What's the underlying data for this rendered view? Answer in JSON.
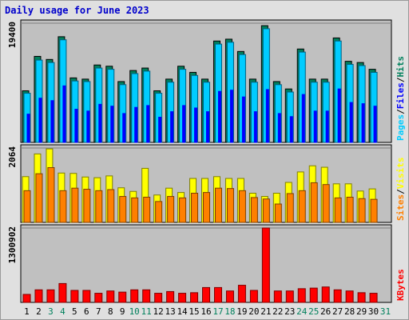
{
  "title": "Daily usage for June 2023",
  "colors": {
    "hits": "#00ccff",
    "hits_dark": "#00805c",
    "files": "#0080ff",
    "files_dark": "#0000ff",
    "pages": "#00ccff",
    "visits": "#ffff00",
    "visits_dark": "#808000",
    "sites": "#ff8000",
    "sites_dark": "#804000",
    "kbytes": "#ff0000",
    "kbytes_dark": "#800000",
    "weekend": "#00805c",
    "weekday": "#000000",
    "plot_bg": "#c0c0c0",
    "grid": "#808080",
    "title": "#0000cc"
  },
  "chart_data": [
    {
      "type": "bar",
      "panel": "hits-files-pages",
      "max_label": "19400",
      "ylim": [
        0,
        19400
      ],
      "legend": [
        "Pages",
        "Files",
        "Hits"
      ],
      "legend_separator": "/",
      "categories": [
        "1",
        "2",
        "3",
        "4",
        "5",
        "6",
        "7",
        "8",
        "9",
        "10",
        "11",
        "12",
        "13",
        "14",
        "15",
        "16",
        "17",
        "18",
        "19",
        "20",
        "21",
        "22",
        "23",
        "24",
        "25",
        "26",
        "27",
        "28",
        "29",
        "30",
        "31"
      ],
      "series": [
        {
          "name": "Hits",
          "values": [
            8400,
            14000,
            13500,
            17200,
            10500,
            10300,
            12600,
            12400,
            9900,
            11700,
            12100,
            8400,
            10300,
            12400,
            11400,
            10300,
            16500,
            16800,
            14800,
            10300,
            19000,
            9900,
            8700,
            15200,
            10300,
            10300,
            17000,
            13200,
            13000,
            11900,
            null
          ]
        },
        {
          "name": "Files",
          "values": [
            8000,
            13400,
            13000,
            16700,
            10000,
            9900,
            12100,
            11900,
            9400,
            11200,
            11600,
            8000,
            9800,
            11900,
            10900,
            9800,
            16000,
            16300,
            14300,
            9800,
            18500,
            9400,
            8200,
            14700,
            9800,
            9800,
            16500,
            12700,
            12500,
            11400,
            null
          ]
        },
        {
          "name": "Pages",
          "values": [
            4600,
            7200,
            6800,
            9200,
            5400,
            5100,
            6200,
            5900,
            4700,
            5700,
            6000,
            4100,
            5000,
            6000,
            5600,
            5000,
            8300,
            8500,
            7400,
            5000,
            8600,
            4700,
            4200,
            7800,
            5100,
            5100,
            8700,
            6500,
            6300,
            5900,
            null
          ]
        }
      ]
    },
    {
      "type": "bar",
      "panel": "visits-sites",
      "max_label": "2064",
      "ylim": [
        0,
        2064
      ],
      "legend": [
        "Sites",
        "Visits"
      ],
      "legend_separator": "/",
      "categories": [
        "1",
        "2",
        "3",
        "4",
        "5",
        "6",
        "7",
        "8",
        "9",
        "10",
        "11",
        "12",
        "13",
        "14",
        "15",
        "16",
        "17",
        "18",
        "19",
        "20",
        "21",
        "22",
        "23",
        "24",
        "25",
        "26",
        "27",
        "28",
        "29",
        "30",
        "31"
      ],
      "series": [
        {
          "name": "Visits",
          "values": [
            1270,
            1900,
            2040,
            1370,
            1360,
            1260,
            1240,
            1290,
            960,
            860,
            1500,
            760,
            950,
            830,
            1220,
            1220,
            1270,
            1220,
            1220,
            810,
            720,
            810,
            1110,
            1400,
            1570,
            1530,
            1070,
            1070,
            870,
            930,
            null
          ]
        },
        {
          "name": "Sites",
          "values": [
            880,
            1350,
            1520,
            880,
            950,
            920,
            880,
            910,
            720,
            680,
            700,
            580,
            720,
            680,
            810,
            830,
            950,
            940,
            880,
            690,
            650,
            510,
            800,
            880,
            1100,
            1050,
            680,
            700,
            660,
            640,
            null
          ]
        }
      ]
    },
    {
      "type": "bar",
      "panel": "kbytes",
      "max_label": "1300902",
      "ylim": [
        0,
        1300902
      ],
      "legend": [
        "KBytes"
      ],
      "categories": [
        "1",
        "2",
        "3",
        "4",
        "5",
        "6",
        "7",
        "8",
        "9",
        "10",
        "11",
        "12",
        "13",
        "14",
        "15",
        "16",
        "17",
        "18",
        "19",
        "20",
        "21",
        "22",
        "23",
        "24",
        "25",
        "26",
        "27",
        "28",
        "29",
        "30",
        "31"
      ],
      "series": [
        {
          "name": "KBytes",
          "values": [
            140000,
            220000,
            220000,
            330000,
            210000,
            210000,
            160000,
            200000,
            180000,
            220000,
            220000,
            160000,
            190000,
            160000,
            170000,
            260000,
            260000,
            200000,
            300000,
            210000,
            1300902,
            200000,
            200000,
            240000,
            250000,
            270000,
            220000,
            200000,
            170000,
            160000,
            null
          ]
        }
      ]
    }
  ],
  "x_ticks": [
    "1",
    "2",
    "3",
    "4",
    "5",
    "6",
    "7",
    "8",
    "9",
    "10",
    "11",
    "12",
    "13",
    "14",
    "15",
    "16",
    "17",
    "18",
    "19",
    "20",
    "21",
    "22",
    "23",
    "24",
    "25",
    "26",
    "27",
    "28",
    "29",
    "30",
    "31"
  ],
  "weekend_days": [
    "3",
    "4",
    "10",
    "11",
    "17",
    "18",
    "24",
    "25",
    "31"
  ]
}
